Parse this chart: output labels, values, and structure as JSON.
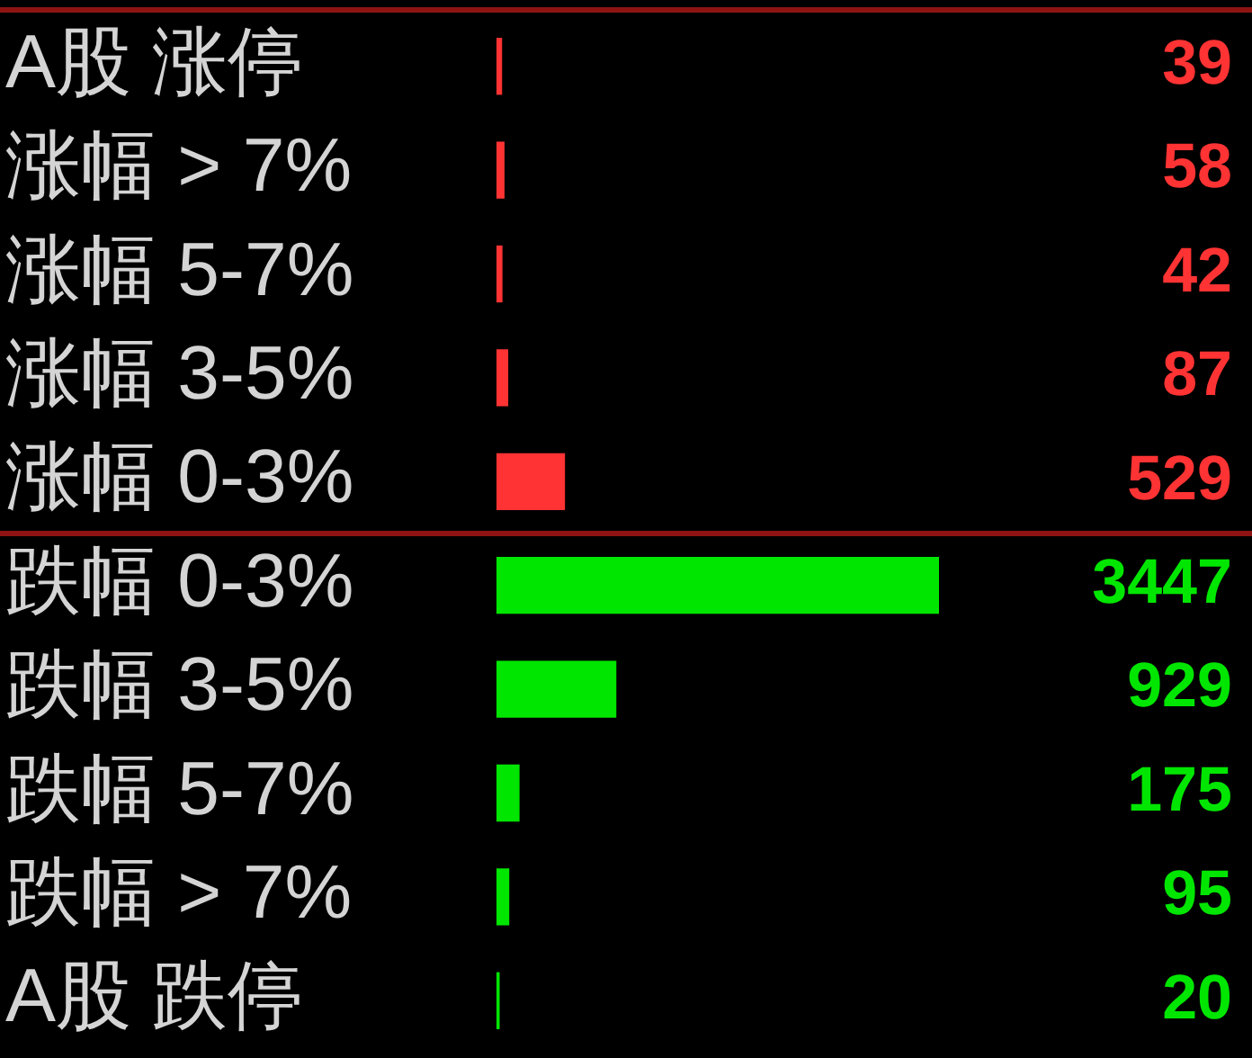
{
  "chart_data": {
    "type": "bar",
    "orientation": "horizontal",
    "categories": [
      "A股 涨停",
      "涨幅 > 7%",
      "涨幅 5-7%",
      "涨幅 3-5%",
      "涨幅 0-3%",
      "跌幅 0-3%",
      "跌幅 3-5%",
      "跌幅 5-7%",
      "跌幅 > 7%",
      "A股 跌停"
    ],
    "values": [
      39,
      58,
      42,
      87,
      529,
      3447,
      929,
      175,
      95,
      20
    ],
    "colors": [
      "#ff3333",
      "#ff3333",
      "#ff3333",
      "#ff3333",
      "#ff3333",
      "#00e600",
      "#00e600",
      "#00e600",
      "#00e600",
      "#00e600"
    ],
    "data_labels": true
  }
}
